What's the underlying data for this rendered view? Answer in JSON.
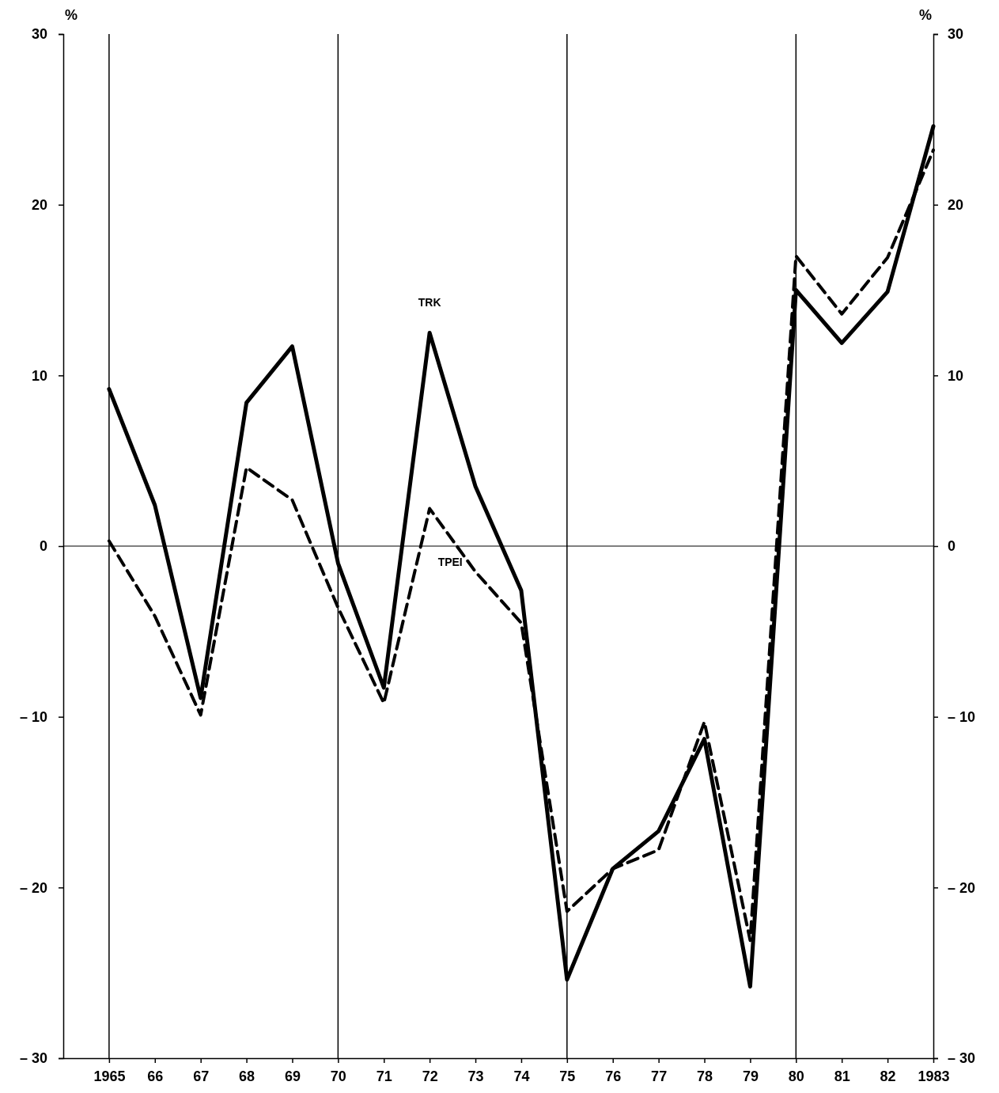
{
  "chart_data": {
    "type": "line",
    "ylabel": "%",
    "y2label": "%",
    "x": [
      1965,
      1966,
      1967,
      1968,
      1969,
      1970,
      1971,
      1972,
      1973,
      1974,
      1975,
      1976,
      1977,
      1978,
      1979,
      1980,
      1981,
      1982,
      1983
    ],
    "series": [
      {
        "name": "TRK",
        "color": "#000000",
        "line_style": "solid",
        "values": [
          9.2,
          2.4,
          -8.9,
          8.4,
          11.7,
          -1.0,
          -8.3,
          12.5,
          3.5,
          -2.6,
          -25.4,
          -18.9,
          -16.7,
          -11.3,
          -25.8,
          15.0,
          11.9,
          14.9,
          24.6
        ]
      },
      {
        "name": "TPEI",
        "color": "#000000",
        "line_style": "dashed",
        "values": [
          0.3,
          -4.1,
          -9.9,
          4.6,
          2.7,
          -3.6,
          -9.2,
          2.2,
          -1.5,
          -4.5,
          -21.4,
          -18.9,
          -17.8,
          -10.3,
          -23.1,
          17.0,
          13.6,
          16.9,
          23.2
        ]
      }
    ],
    "xlim": [
      1964,
      1983
    ],
    "xticks": [
      1965,
      {
        "value": 1966,
        "label": "66"
      },
      {
        "value": 1967,
        "label": "67"
      },
      {
        "value": 1968,
        "label": "68"
      },
      {
        "value": 1969,
        "label": "69"
      },
      {
        "value": 1970,
        "label": "70"
      },
      {
        "value": 1971,
        "label": "71"
      },
      {
        "value": 1972,
        "label": "72"
      },
      {
        "value": 1973,
        "label": "73"
      },
      {
        "value": 1974,
        "label": "74"
      },
      {
        "value": 1975,
        "label": "75"
      },
      {
        "value": 1976,
        "label": "76"
      },
      {
        "value": 1977,
        "label": "77"
      },
      {
        "value": 1978,
        "label": "78"
      },
      {
        "value": 1979,
        "label": "79"
      },
      {
        "value": 1980,
        "label": "80"
      },
      {
        "value": 1981,
        "label": "81"
      },
      {
        "value": 1982,
        "label": "82"
      },
      1983
    ],
    "ylim": [
      -30,
      30
    ],
    "yticks": [
      {
        "value": -30,
        "label": "– 30"
      },
      {
        "value": -20,
        "label": "– 20"
      },
      {
        "value": -10,
        "label": "– 10"
      },
      0,
      10,
      20,
      30
    ],
    "y2lim": [
      -30,
      30
    ],
    "y2ticks": [
      {
        "value": -30,
        "label": "– 30"
      },
      {
        "value": -20,
        "label": "– 20"
      },
      {
        "value": -10,
        "label": "– 10"
      },
      0,
      10,
      20,
      30
    ],
    "ref_lines": [
      {
        "axis": "y",
        "value": 0
      },
      {
        "axis": "x",
        "value": 1965
      },
      {
        "axis": "x",
        "value": 1970
      },
      {
        "axis": "x",
        "value": 1975
      },
      {
        "axis": "x",
        "value": 1980
      }
    ]
  }
}
